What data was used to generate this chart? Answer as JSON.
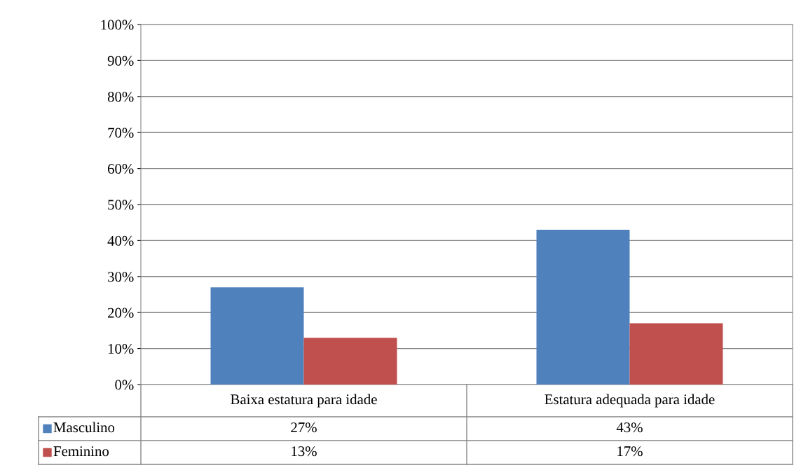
{
  "chart_data": {
    "type": "bar",
    "categories": [
      "Baixa estatura para idade",
      "Estatura adequada para idade"
    ],
    "series": [
      {
        "name": "Masculino",
        "color": "#4f81bd",
        "values": [
          27,
          43
        ],
        "value_labels": [
          "27%",
          "43%"
        ]
      },
      {
        "name": "Feminino",
        "color": "#c0504d",
        "values": [
          13,
          17
        ],
        "value_labels": [
          "13%",
          "17%"
        ]
      }
    ],
    "ylim": [
      0,
      100
    ],
    "yticks": [
      {
        "value": 0,
        "label": "0%"
      },
      {
        "value": 10,
        "label": "10%"
      },
      {
        "value": 20,
        "label": "20%"
      },
      {
        "value": 30,
        "label": "30%"
      },
      {
        "value": 40,
        "label": "40%"
      },
      {
        "value": 50,
        "label": "50%"
      },
      {
        "value": 60,
        "label": "60%"
      },
      {
        "value": 70,
        "label": "70%"
      },
      {
        "value": 80,
        "label": "80%"
      },
      {
        "value": 90,
        "label": "90%"
      },
      {
        "value": 100,
        "label": "100%"
      }
    ],
    "grid": "y",
    "legend": "bottom left"
  }
}
